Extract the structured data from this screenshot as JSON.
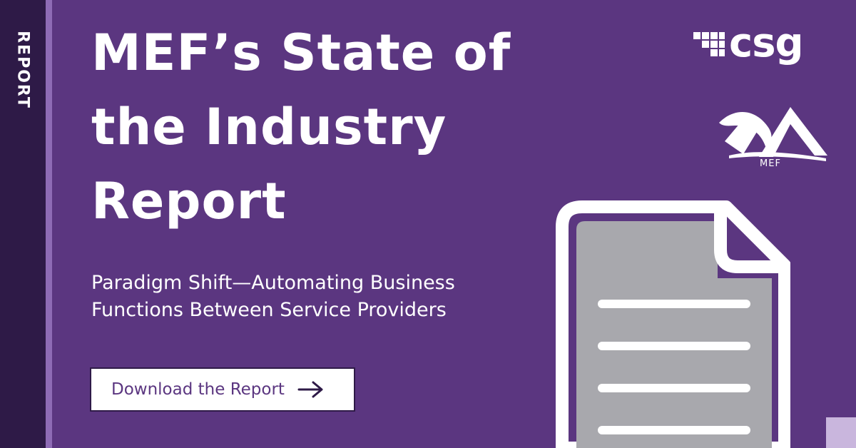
{
  "sidebar": {
    "label": "REPORT"
  },
  "headline": {
    "title": "MEF’s State of the Industry Report"
  },
  "subtitle": {
    "text": "Paradigm Shift—Automating Business Functions Between Service Providers"
  },
  "cta": {
    "label": "Download the Report",
    "icon": "arrow-right-icon"
  },
  "logos": {
    "csg": {
      "wordmark": "csg",
      "icon": "csg-pixel-mark-icon"
    },
    "mef": {
      "wordmark": "MEF",
      "icon": "mef-mountain-logo-icon"
    }
  },
  "illustration": {
    "icon": "document-icon"
  },
  "colors": {
    "background": "#5b3680",
    "sidebar": "#2e1a47",
    "sidebar_stripe": "#8e6bb5",
    "document_page": "#a8a8ad",
    "accent_square": "#c9b6dd",
    "text": "#ffffff",
    "cta_text": "#5b3680"
  }
}
